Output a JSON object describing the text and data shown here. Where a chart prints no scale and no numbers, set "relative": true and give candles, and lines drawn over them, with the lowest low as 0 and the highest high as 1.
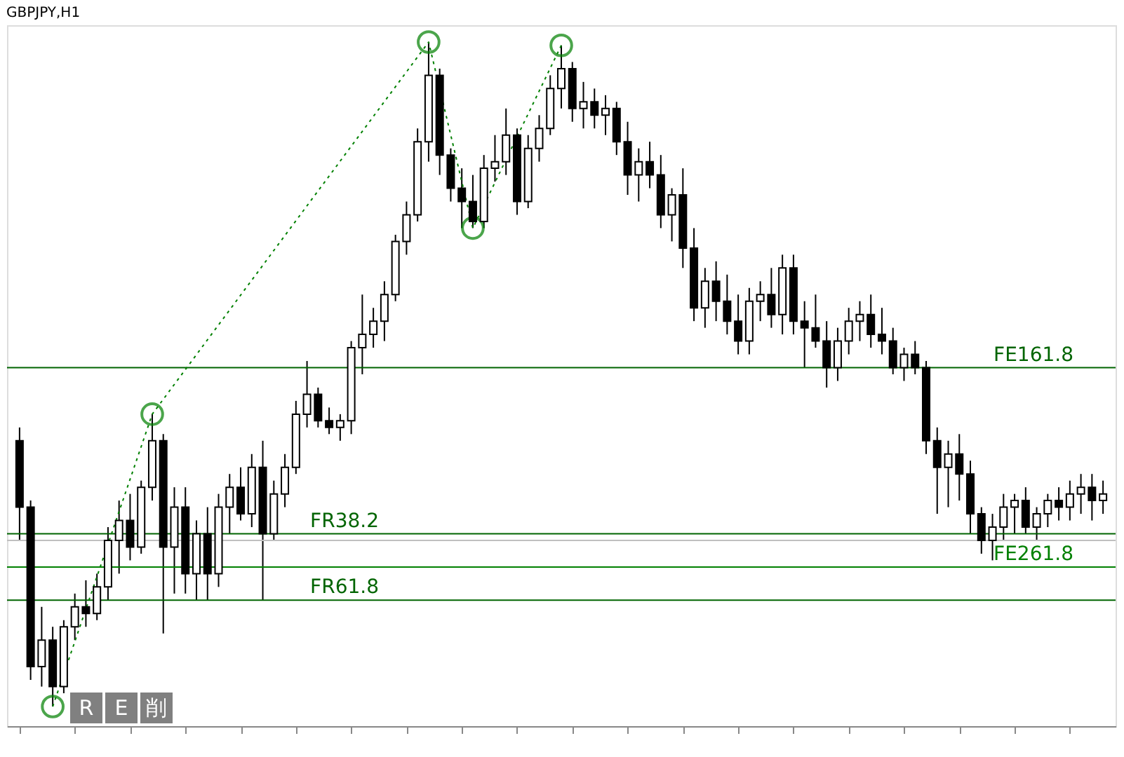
{
  "chart_data": {
    "type": "candlestick",
    "title": "GBPJPY,H1",
    "relative": true,
    "tick_labels": false,
    "grid": false,
    "categories": [
      null,
      null,
      null,
      null,
      null,
      null,
      null,
      null,
      null,
      null,
      null,
      null,
      null,
      null,
      null,
      null,
      null,
      null,
      null,
      null,
      null,
      null,
      null,
      null,
      null,
      null,
      null,
      null,
      null,
      null,
      null,
      null,
      null,
      null,
      null,
      null,
      null,
      null,
      null,
      null,
      null,
      null,
      null,
      null,
      null,
      null,
      null,
      null,
      null,
      null,
      null,
      null,
      null,
      null,
      null,
      null,
      null,
      null,
      null,
      null,
      null,
      null,
      null,
      null,
      null,
      null,
      null,
      null,
      null,
      null,
      null,
      null,
      null,
      null,
      null,
      null,
      null,
      null,
      null,
      null,
      null,
      null,
      null,
      null,
      null,
      null,
      null,
      null,
      null,
      null,
      null,
      null,
      null,
      null,
      null,
      null,
      null,
      null,
      null
    ],
    "color": "#000000",
    "ohlc": [
      [
        0.4,
        0.42,
        0.25,
        0.3
      ],
      [
        0.3,
        0.31,
        0.04,
        0.06
      ],
      [
        0.06,
        0.15,
        0.03,
        0.1
      ],
      [
        0.1,
        0.12,
        0.0,
        0.03
      ],
      [
        0.03,
        0.13,
        0.02,
        0.12
      ],
      [
        0.12,
        0.17,
        0.1,
        0.15
      ],
      [
        0.15,
        0.19,
        0.12,
        0.14
      ],
      [
        0.14,
        0.2,
        0.13,
        0.18
      ],
      [
        0.18,
        0.27,
        0.16,
        0.25
      ],
      [
        0.25,
        0.31,
        0.2,
        0.28
      ],
      [
        0.28,
        0.32,
        0.22,
        0.24
      ],
      [
        0.24,
        0.34,
        0.23,
        0.33
      ],
      [
        0.33,
        0.44,
        0.31,
        0.4
      ],
      [
        0.4,
        0.41,
        0.11,
        0.24
      ],
      [
        0.24,
        0.33,
        0.17,
        0.3
      ],
      [
        0.3,
        0.33,
        0.17,
        0.2
      ],
      [
        0.2,
        0.28,
        0.16,
        0.26
      ],
      [
        0.26,
        0.3,
        0.16,
        0.2
      ],
      [
        0.2,
        0.32,
        0.18,
        0.3
      ],
      [
        0.3,
        0.35,
        0.26,
        0.33
      ],
      [
        0.33,
        0.36,
        0.28,
        0.29
      ],
      [
        0.29,
        0.38,
        0.27,
        0.36
      ],
      [
        0.36,
        0.4,
        0.16,
        0.26
      ],
      [
        0.26,
        0.34,
        0.25,
        0.32
      ],
      [
        0.32,
        0.38,
        0.3,
        0.36
      ],
      [
        0.36,
        0.46,
        0.35,
        0.44
      ],
      [
        0.44,
        0.52,
        0.42,
        0.47
      ],
      [
        0.47,
        0.48,
        0.42,
        0.43
      ],
      [
        0.43,
        0.45,
        0.41,
        0.42
      ],
      [
        0.42,
        0.44,
        0.4,
        0.43
      ],
      [
        0.43,
        0.55,
        0.41,
        0.54
      ],
      [
        0.54,
        0.62,
        0.5,
        0.56
      ],
      [
        0.56,
        0.6,
        0.54,
        0.58
      ],
      [
        0.58,
        0.64,
        0.55,
        0.62
      ],
      [
        0.62,
        0.71,
        0.61,
        0.7
      ],
      [
        0.7,
        0.76,
        0.68,
        0.74
      ],
      [
        0.74,
        0.87,
        0.73,
        0.85
      ],
      [
        0.85,
        1.0,
        0.82,
        0.95
      ],
      [
        0.95,
        0.96,
        0.8,
        0.83
      ],
      [
        0.83,
        0.84,
        0.76,
        0.78
      ],
      [
        0.78,
        0.81,
        0.72,
        0.76
      ],
      [
        0.76,
        0.8,
        0.72,
        0.73
      ],
      [
        0.73,
        0.83,
        0.72,
        0.81
      ],
      [
        0.81,
        0.86,
        0.79,
        0.82
      ],
      [
        0.82,
        0.9,
        0.8,
        0.86
      ],
      [
        0.86,
        0.87,
        0.74,
        0.76
      ],
      [
        0.76,
        0.86,
        0.75,
        0.84
      ],
      [
        0.84,
        0.89,
        0.82,
        0.87
      ],
      [
        0.87,
        0.95,
        0.86,
        0.93
      ],
      [
        0.93,
        0.995,
        0.9,
        0.96
      ],
      [
        0.96,
        0.97,
        0.88,
        0.9
      ],
      [
        0.9,
        0.94,
        0.87,
        0.91
      ],
      [
        0.91,
        0.93,
        0.87,
        0.89
      ],
      [
        0.89,
        0.92,
        0.86,
        0.9
      ],
      [
        0.9,
        0.91,
        0.83,
        0.85
      ],
      [
        0.85,
        0.88,
        0.77,
        0.8
      ],
      [
        0.8,
        0.84,
        0.76,
        0.82
      ],
      [
        0.82,
        0.85,
        0.78,
        0.8
      ],
      [
        0.8,
        0.83,
        0.72,
        0.74
      ],
      [
        0.74,
        0.78,
        0.7,
        0.77
      ],
      [
        0.77,
        0.81,
        0.66,
        0.69
      ],
      [
        0.69,
        0.72,
        0.58,
        0.6
      ],
      [
        0.6,
        0.66,
        0.57,
        0.64
      ],
      [
        0.64,
        0.67,
        0.58,
        0.61
      ],
      [
        0.61,
        0.65,
        0.56,
        0.58
      ],
      [
        0.58,
        0.62,
        0.53,
        0.55
      ],
      [
        0.55,
        0.63,
        0.53,
        0.61
      ],
      [
        0.61,
        0.64,
        0.58,
        0.62
      ],
      [
        0.62,
        0.66,
        0.57,
        0.59
      ],
      [
        0.59,
        0.68,
        0.56,
        0.66
      ],
      [
        0.66,
        0.68,
        0.56,
        0.58
      ],
      [
        0.58,
        0.61,
        0.51,
        0.57
      ],
      [
        0.57,
        0.62,
        0.54,
        0.55
      ],
      [
        0.55,
        0.58,
        0.48,
        0.51
      ],
      [
        0.51,
        0.57,
        0.49,
        0.55
      ],
      [
        0.55,
        0.6,
        0.53,
        0.58
      ],
      [
        0.58,
        0.61,
        0.55,
        0.59
      ],
      [
        0.59,
        0.62,
        0.54,
        0.56
      ],
      [
        0.56,
        0.6,
        0.53,
        0.55
      ],
      [
        0.55,
        0.57,
        0.5,
        0.51
      ],
      [
        0.51,
        0.54,
        0.49,
        0.53
      ],
      [
        0.53,
        0.55,
        0.5,
        0.51
      ],
      [
        0.51,
        0.52,
        0.38,
        0.4
      ],
      [
        0.4,
        0.42,
        0.29,
        0.36
      ],
      [
        0.36,
        0.4,
        0.3,
        0.38
      ],
      [
        0.38,
        0.41,
        0.31,
        0.35
      ],
      [
        0.35,
        0.37,
        0.26,
        0.29
      ],
      [
        0.29,
        0.3,
        0.23,
        0.25
      ],
      [
        0.25,
        0.29,
        0.22,
        0.27
      ],
      [
        0.27,
        0.32,
        0.25,
        0.3
      ],
      [
        0.3,
        0.32,
        0.26,
        0.31
      ],
      [
        0.31,
        0.33,
        0.26,
        0.27
      ],
      [
        0.27,
        0.3,
        0.25,
        0.29
      ],
      [
        0.29,
        0.32,
        0.27,
        0.31
      ],
      [
        0.31,
        0.33,
        0.28,
        0.3
      ],
      [
        0.3,
        0.34,
        0.28,
        0.32
      ],
      [
        0.32,
        0.35,
        0.29,
        0.33
      ],
      [
        0.33,
        0.35,
        0.28,
        0.31
      ],
      [
        0.31,
        0.34,
        0.29,
        0.32
      ]
    ],
    "series": [
      {
        "type": "line",
        "color": "#008000",
        "marker": "circle",
        "line_style": "dotted",
        "values": [
          null,
          null,
          null,
          0.0,
          null,
          null,
          null,
          null,
          null,
          null,
          null,
          null,
          0.44,
          null,
          null,
          null,
          null,
          null,
          null,
          null,
          null,
          null,
          null,
          null,
          null,
          null,
          null,
          null,
          null,
          null,
          null,
          null,
          null,
          null,
          null,
          null,
          null,
          1.0,
          null,
          null,
          null,
          0.72,
          null,
          null,
          null,
          null,
          null,
          null,
          null,
          0.995,
          null,
          null,
          null,
          null,
          null,
          null,
          null,
          null,
          null,
          null,
          null,
          null,
          null,
          null,
          null,
          null,
          null,
          null,
          null,
          null,
          null,
          null,
          null,
          null,
          null,
          null,
          null,
          null,
          null,
          null,
          null,
          null,
          null,
          null,
          null,
          null,
          null,
          null,
          null,
          null,
          null,
          null,
          null,
          null,
          null,
          null,
          null,
          null,
          null
        ]
      }
    ],
    "ref_lines": [
      {
        "axis": "y",
        "value": 0.25,
        "color": "#c0c0c0"
      },
      {
        "axis": "y",
        "value": 0.26,
        "label": "FR38.2",
        "color": "#006400"
      },
      {
        "axis": "y",
        "value": 0.16,
        "label": "FR61.8",
        "color": "#006400"
      },
      {
        "axis": "y",
        "value": 0.51,
        "label": "FE161.8",
        "color": "#006400"
      },
      {
        "axis": "y",
        "value": 0.21,
        "label": "FE261.8",
        "color": "#008000"
      }
    ],
    "annotations": [
      "R",
      "E",
      "削"
    ]
  }
}
